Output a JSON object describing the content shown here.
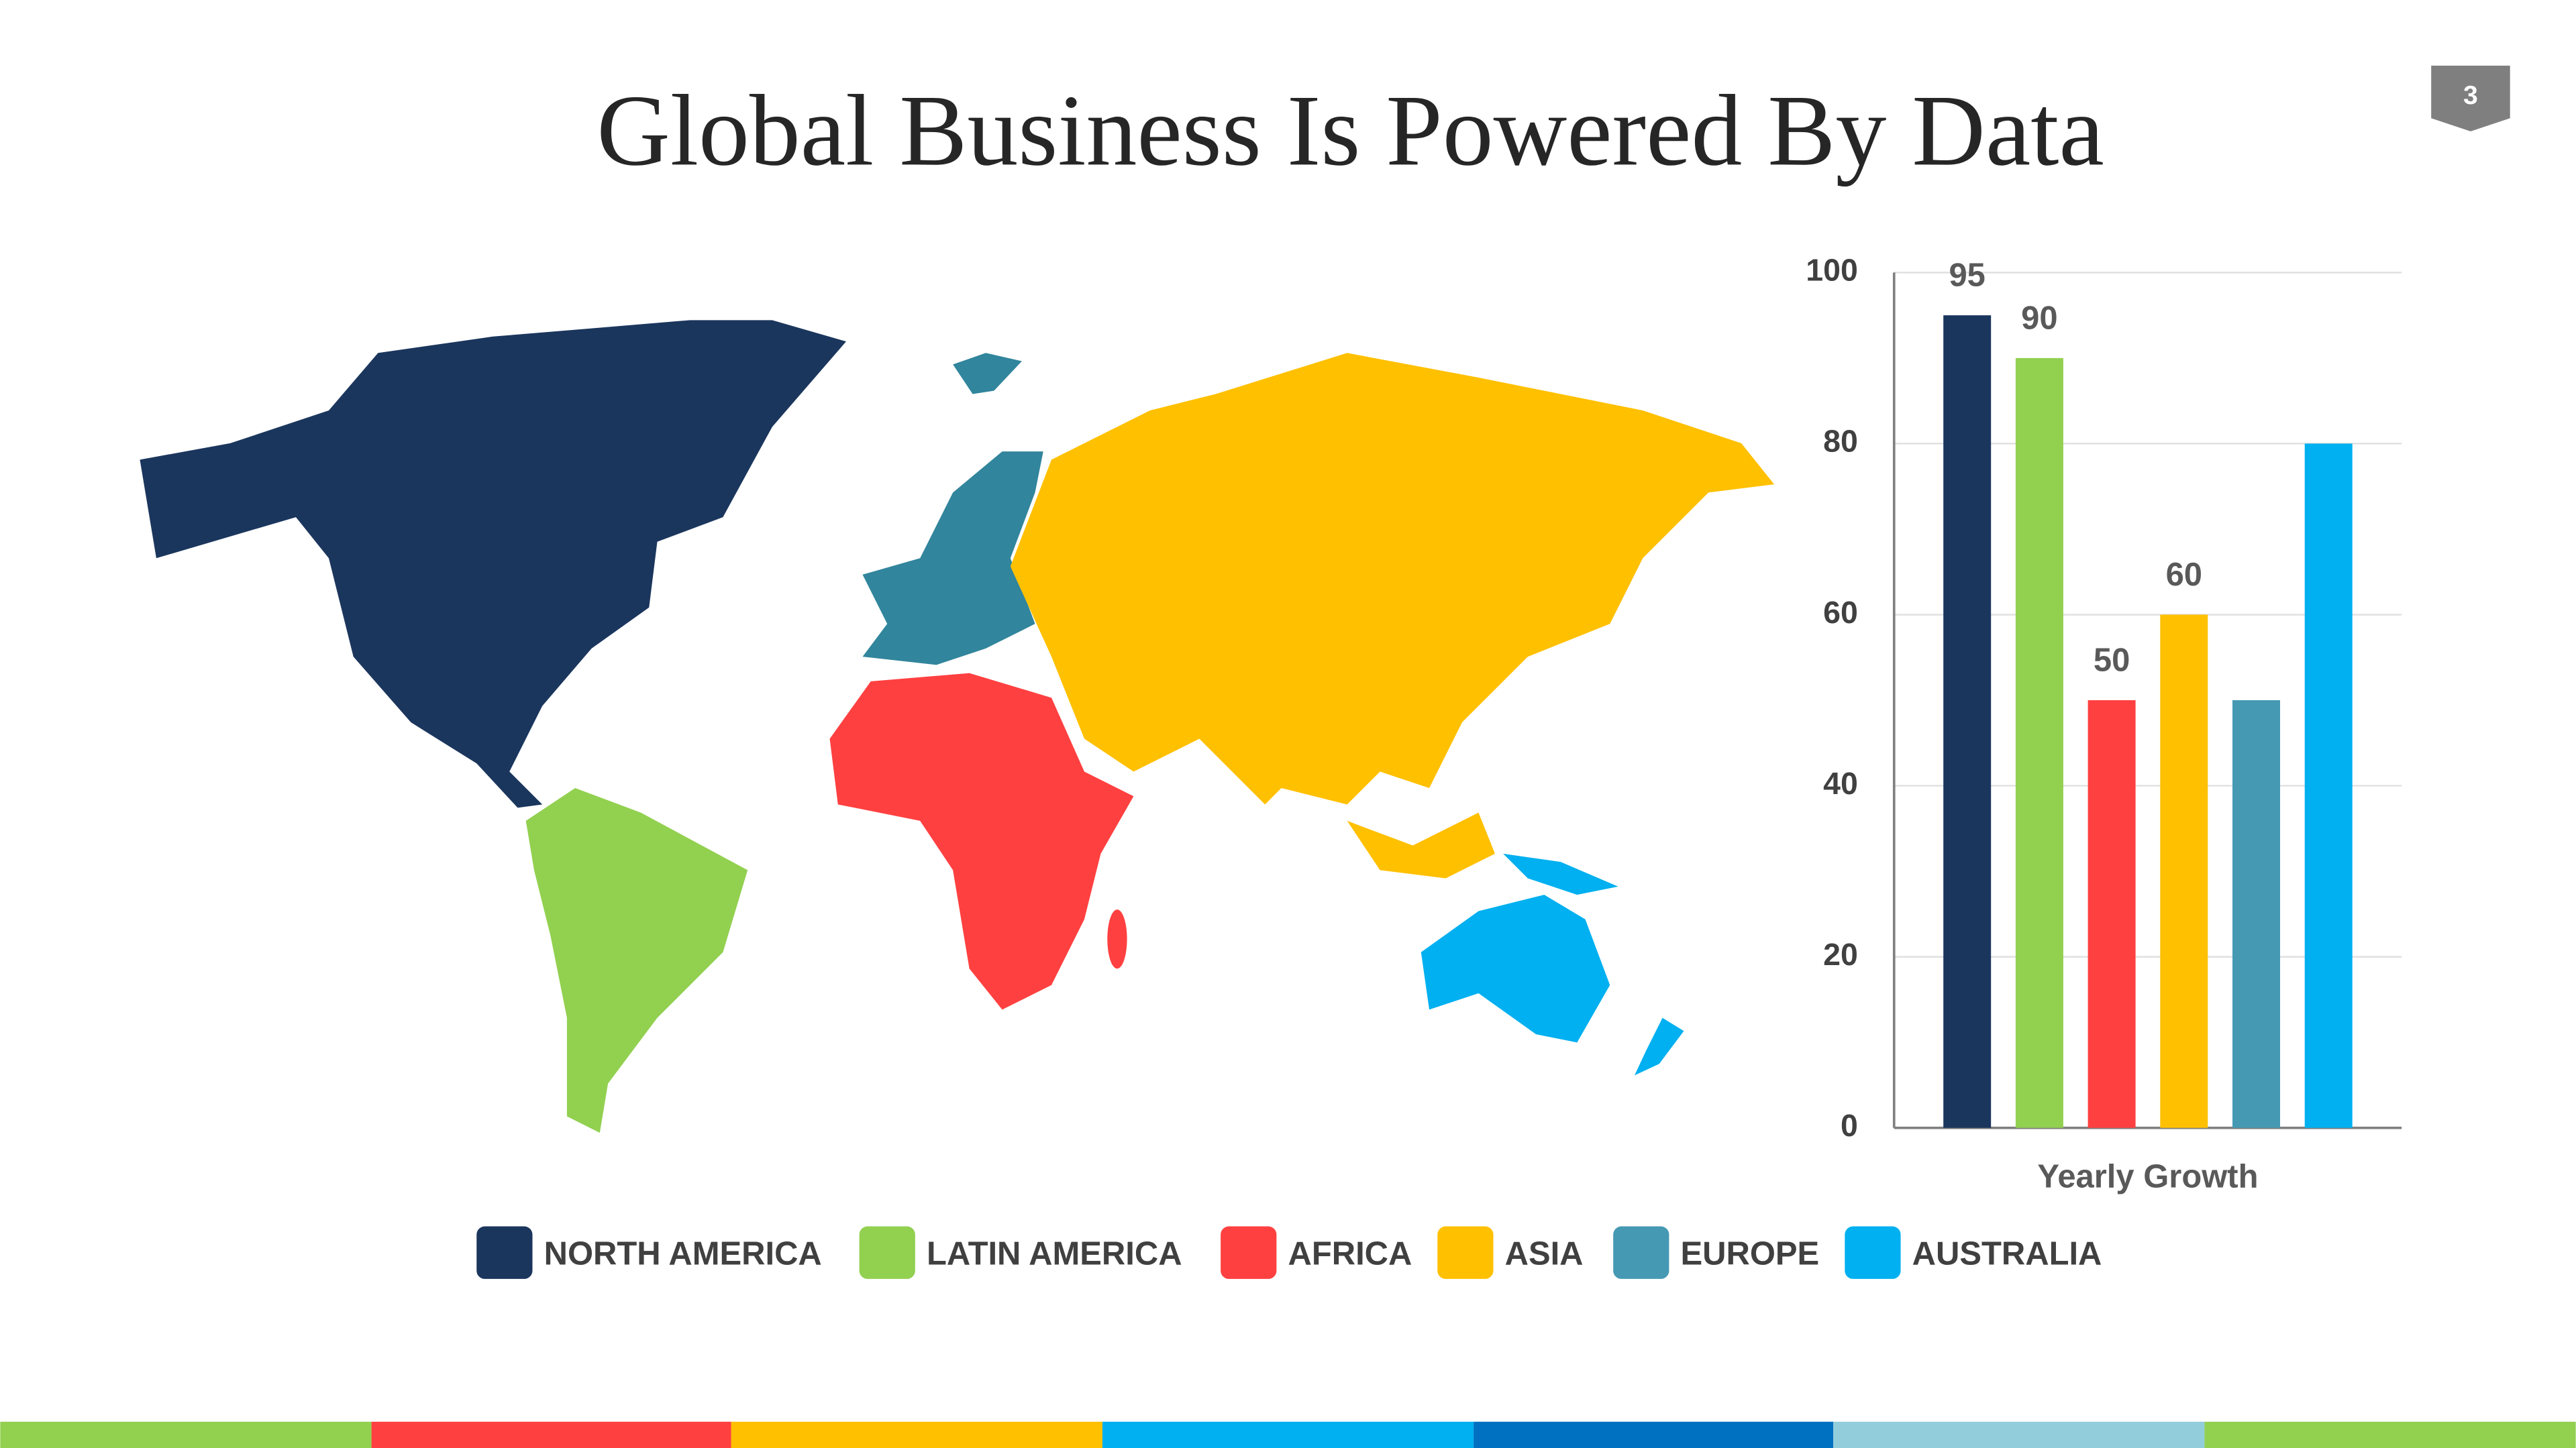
{
  "title": "Global Business Is Powered By Data",
  "page_number": "3",
  "chart_data": {
    "type": "bar",
    "categories": [
      "Yearly Growth"
    ],
    "series": [
      {
        "name": "NORTH AMERICA",
        "color": "#1b365d",
        "values": [
          95
        ],
        "show_label": true
      },
      {
        "name": "LATIN AMERICA",
        "color": "#92d050",
        "values": [
          90
        ],
        "show_label": true
      },
      {
        "name": "AFRICA",
        "color": "#ff4040",
        "values": [
          50
        ],
        "show_label": true
      },
      {
        "name": "ASIA",
        "color": "#ffc000",
        "values": [
          60
        ],
        "show_label": true
      },
      {
        "name": "EUROPE",
        "color": "#4599b3",
        "values": [
          50
        ],
        "show_label": false
      },
      {
        "name": "AUSTRALIA",
        "color": "#00b0f0",
        "values": [
          80
        ],
        "show_label": false
      }
    ],
    "ylim": [
      0,
      100
    ],
    "yticks": [
      0,
      20,
      40,
      60,
      80,
      100
    ],
    "grid": true,
    "legend": "bottom"
  }
}
